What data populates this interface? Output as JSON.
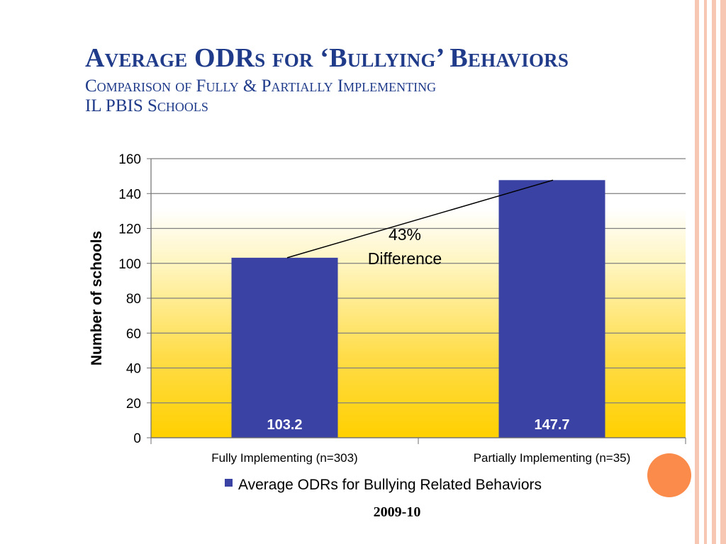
{
  "slide": {
    "title": "Average ODRs for ‘Bullying’ Behaviors",
    "subtitle_line1": "Comparison of Fully & Partially Implementing",
    "subtitle_line2": "IL PBIS Schools",
    "footer_year": "2009-10",
    "colors": {
      "title": "#1f3b8a",
      "accent_stripe": "#f8c7b4",
      "orange_dot": "#fb8b4b",
      "bar": "#3a43a3"
    }
  },
  "chart_data": {
    "type": "bar",
    "categories": [
      "Fully Implementing (n=303)",
      "Partially Implementing (n=35)"
    ],
    "series": [
      {
        "name": "Average ODRs for Bullying Related Behaviors",
        "values": [
          103.2,
          147.7
        ],
        "labels": [
          "103.2",
          "147.7"
        ]
      }
    ],
    "ylabel": "Number of schools",
    "ylim": [
      0,
      160
    ],
    "yticks": [
      0,
      20,
      40,
      60,
      80,
      100,
      120,
      140,
      160
    ],
    "annotation": {
      "line1": "43%",
      "line2": "Difference"
    },
    "legend": "bottom",
    "grid": true
  }
}
